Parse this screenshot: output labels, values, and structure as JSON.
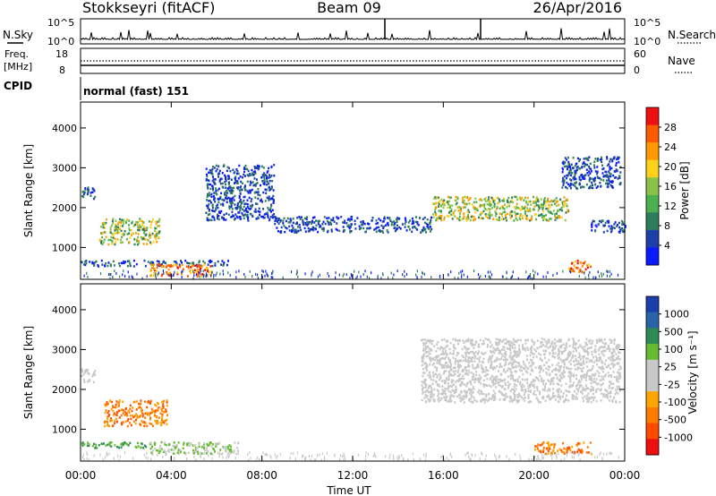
{
  "header": {
    "station": "Stokkseyri (fitACF)",
    "beam": "Beam 09",
    "date": "26/Apr/2016"
  },
  "noise_panel": {
    "left_label": "N.Sky",
    "right_label": "N.Search",
    "left_ticks": [
      "10^5",
      "10^0"
    ],
    "right_ticks": [
      "10^5",
      "10^0"
    ]
  },
  "freq_panel": {
    "left_label_line1": "Freq.",
    "left_label_line2": "[MHz]",
    "right_label": "Nave",
    "left_ticks": [
      "18",
      "8"
    ],
    "right_ticks": [
      "60",
      "0"
    ]
  },
  "cpid": {
    "label": "CPID",
    "value": "normal (fast) 151"
  },
  "colors": {
    "power_bar": [
      "#0a1aff",
      "#1c3fa8",
      "#2e7d5a",
      "#4caf50",
      "#8bc34a",
      "#ffd21a",
      "#ff9a00",
      "#ff5a00",
      "#ee1010"
    ],
    "velocity_bar": [
      "#ee1010",
      "#ff4a00",
      "#ff7a00",
      "#ffa500",
      "#c8c8c8",
      "#c8c8c8",
      "#66bb33",
      "#2e8b57",
      "#2a64a8",
      "#1a3faa"
    ]
  },
  "chart_data": [
    {
      "type": "heatmap",
      "name": "power",
      "ylabel": "Slant Range [km]",
      "yticks": [
        "4000",
        "3000",
        "2000",
        "1000"
      ],
      "ylim": [
        200,
        4650
      ],
      "xlim_hours": [
        0,
        24
      ],
      "colorbar": {
        "label": "Power [dB]",
        "ticks": [
          "28",
          "24",
          "20",
          "16",
          "12",
          "8",
          "4"
        ],
        "range": [
          0,
          32
        ]
      },
      "echo_regions": [
        {
          "t": [
            0.0,
            6.5
          ],
          "range_km": [
            550,
            700
          ],
          "level": "low"
        },
        {
          "t": [
            3.0,
            5.8
          ],
          "range_km": [
            300,
            600
          ],
          "level": "high"
        },
        {
          "t": [
            0.8,
            3.5
          ],
          "range_km": [
            1100,
            1750
          ],
          "level": "medium"
        },
        {
          "t": [
            0.0,
            0.6
          ],
          "range_km": [
            2200,
            2550
          ],
          "level": "low"
        },
        {
          "t": [
            5.5,
            8.5
          ],
          "range_km": [
            1700,
            3100
          ],
          "level": "low"
        },
        {
          "t": [
            8.5,
            15.5
          ],
          "range_km": [
            1400,
            1800
          ],
          "level": "low"
        },
        {
          "t": [
            15.5,
            21.5
          ],
          "range_km": [
            1700,
            2300
          ],
          "level": "medium"
        },
        {
          "t": [
            21.2,
            23.8
          ],
          "range_km": [
            2500,
            3300
          ],
          "level": "low"
        },
        {
          "t": [
            21.5,
            22.5
          ],
          "range_km": [
            400,
            700
          ],
          "level": "high"
        },
        {
          "t": [
            22.5,
            24.0
          ],
          "range_km": [
            1400,
            1700
          ],
          "level": "low"
        }
      ]
    },
    {
      "type": "heatmap",
      "name": "velocity",
      "ylabel": "Slant Range [km]",
      "yticks": [
        "4000",
        "3000",
        "2000",
        "1000"
      ],
      "ylim": [
        200,
        4650
      ],
      "xlabel": "Time UT",
      "xticks": [
        "00:00",
        "04:00",
        "08:00",
        "12:00",
        "16:00",
        "20:00",
        "00:00"
      ],
      "xlim_hours": [
        0,
        24
      ],
      "colorbar": {
        "label": "Velocity [m s⁻¹]",
        "ticks": [
          "1000",
          "500",
          "100",
          "25",
          "-25",
          "-100",
          "-500",
          "-1000"
        ]
      },
      "echo_regions": [
        {
          "t": [
            0.0,
            3.0
          ],
          "range_km": [
            550,
            700
          ],
          "velocity": "100..500"
        },
        {
          "t": [
            3.0,
            7.0
          ],
          "range_km": [
            400,
            700
          ],
          "velocity": "25..100"
        },
        {
          "t": [
            1.0,
            3.8
          ],
          "range_km": [
            1100,
            1750
          ],
          "velocity": "-100..-500"
        },
        {
          "t": [
            0.0,
            0.6
          ],
          "range_km": [
            2200,
            2550
          ],
          "velocity": "-25..25"
        },
        {
          "t": [
            15.0,
            23.8
          ],
          "range_km": [
            1700,
            3300
          ],
          "velocity": "-25..25"
        },
        {
          "t": [
            20.0,
            22.5
          ],
          "range_km": [
            400,
            700
          ],
          "velocity": "-100..-500"
        }
      ]
    }
  ]
}
